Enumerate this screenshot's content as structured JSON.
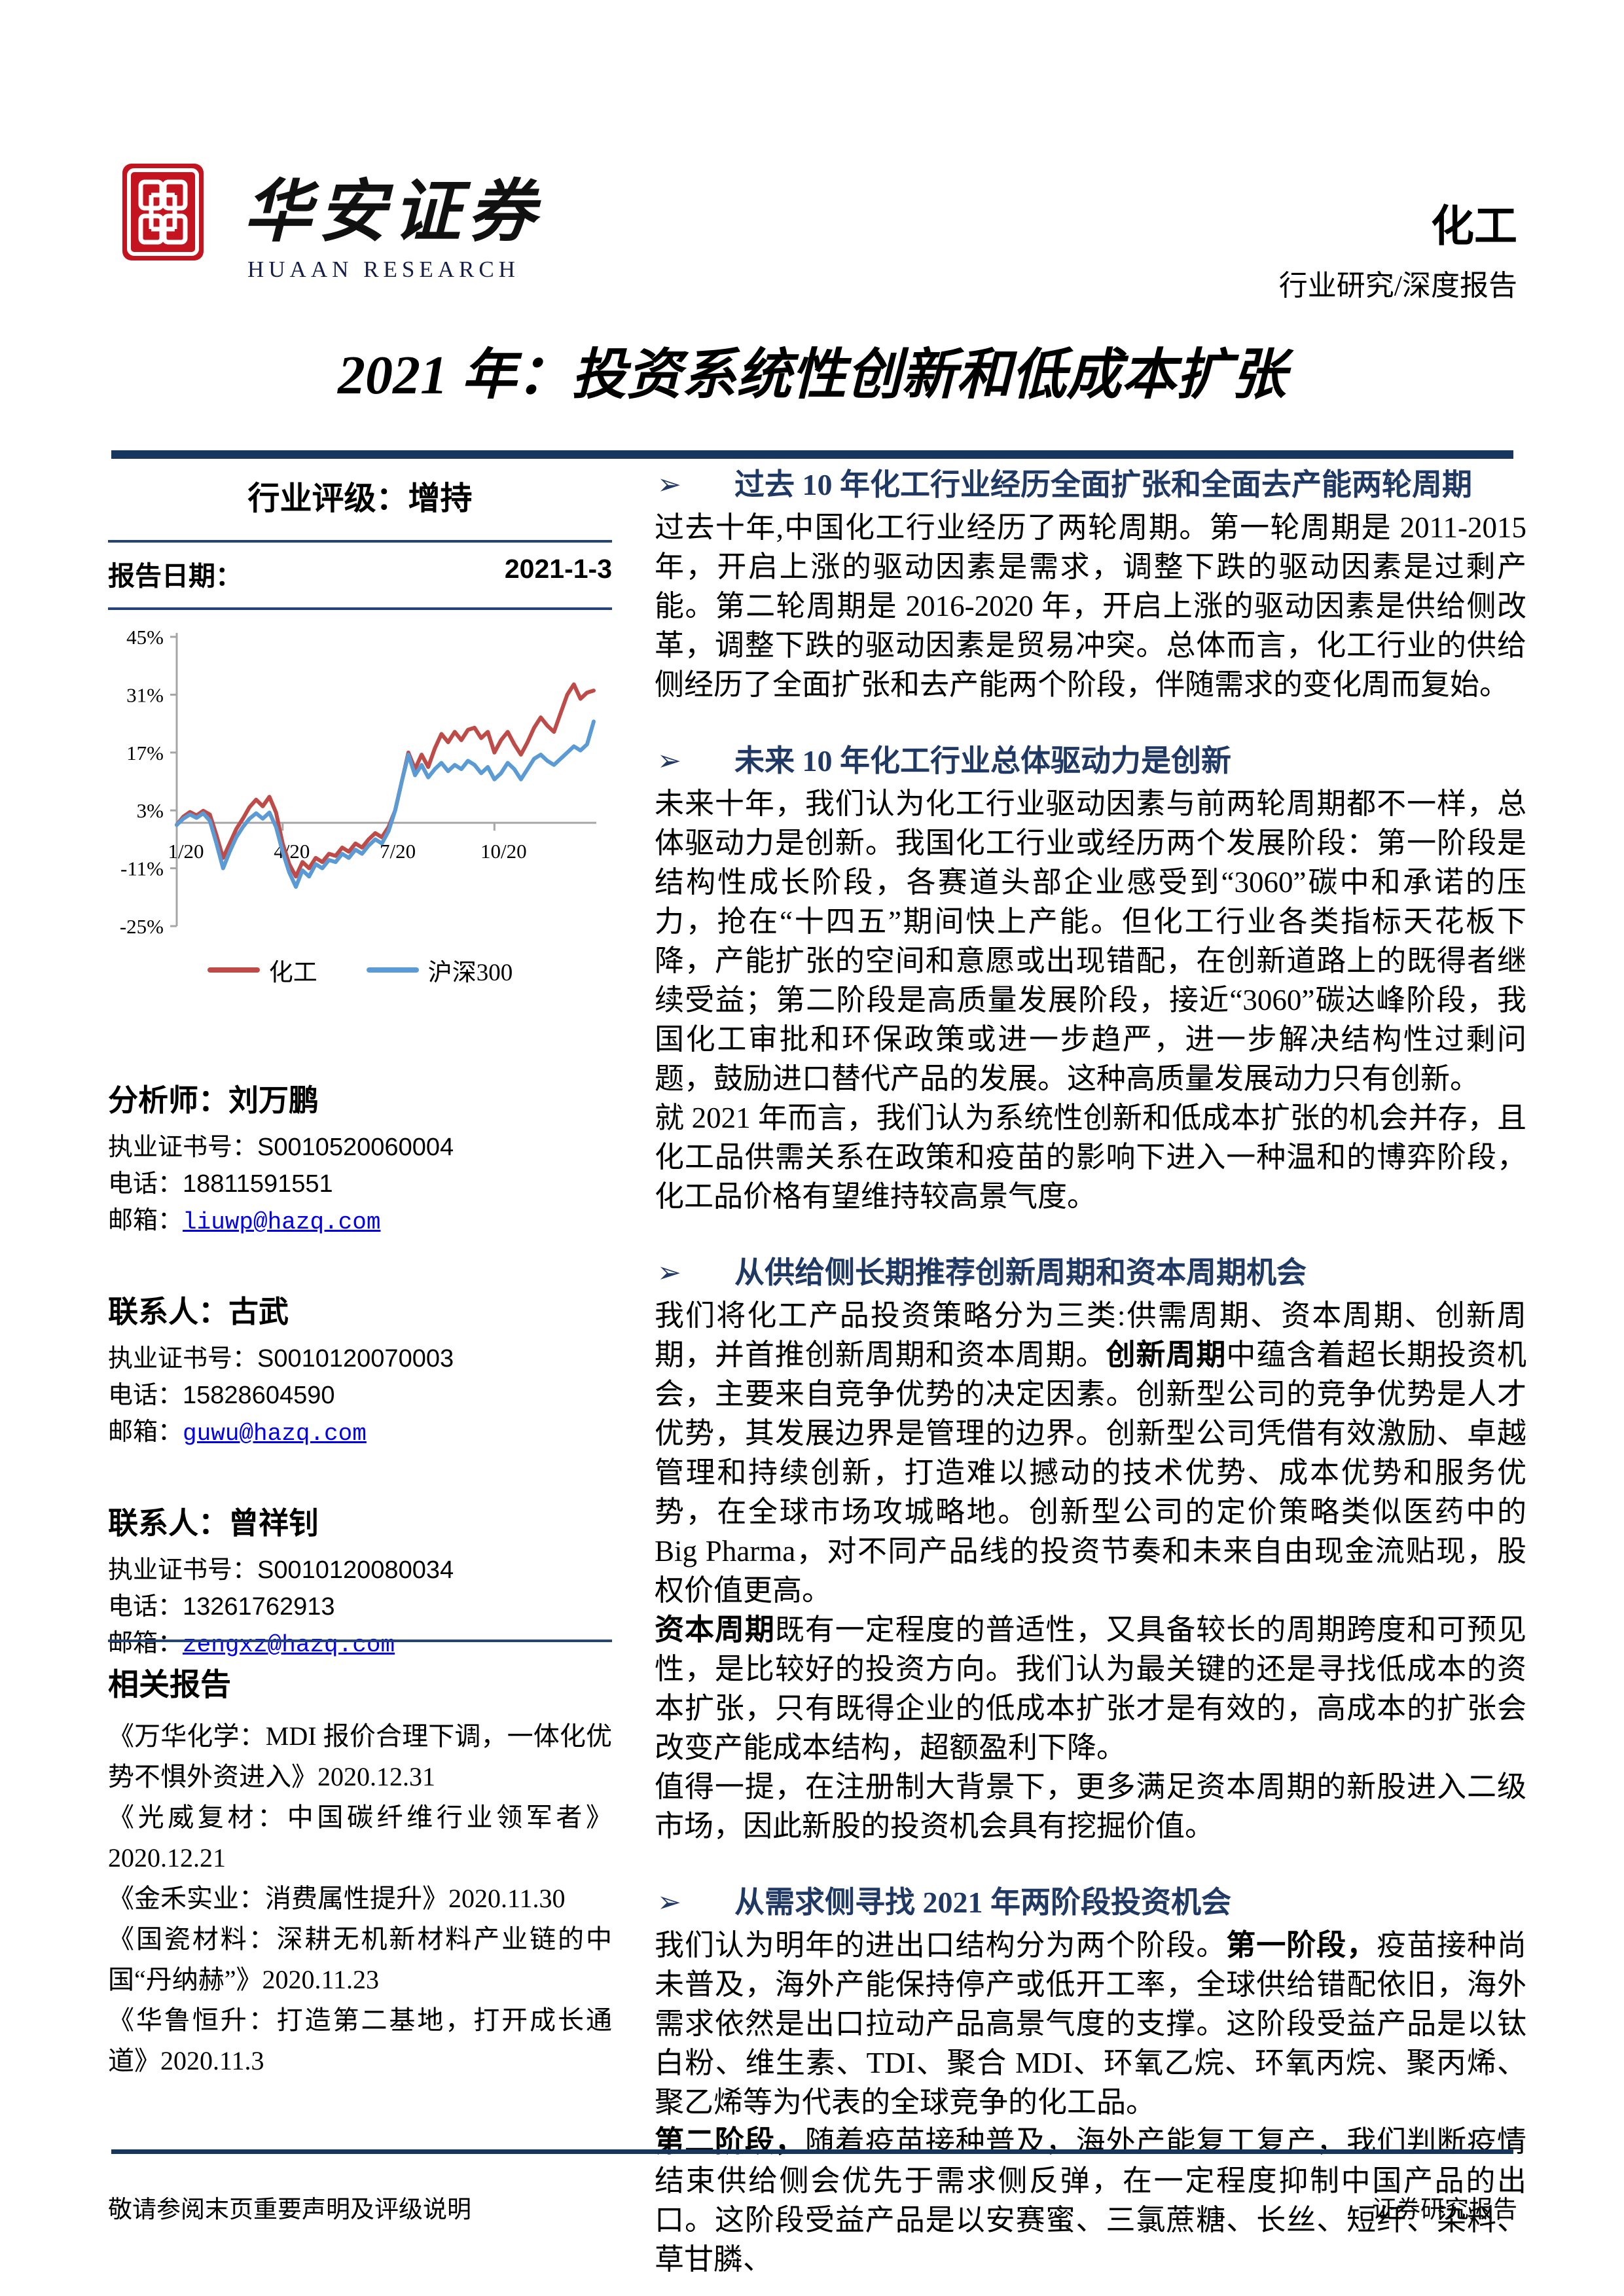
{
  "header": {
    "brand_cn": "华安证券",
    "brand_en": "HUAAN RESEARCH",
    "industry": "化工",
    "report_type": "行业研究/深度报告",
    "title": "2021 年：投资系统性创新和低成本扩张"
  },
  "left": {
    "rating": "行业评级：增持",
    "date_label": "报告日期：",
    "date_value": "2021-1-3",
    "people": [
      {
        "title": "分析师：刘万鹏",
        "rows": [
          {
            "label": "执业证书号：",
            "value": "S0010520060004"
          },
          {
            "label": "电话：",
            "value": "18811591551"
          },
          {
            "label": "邮箱：",
            "value": "liuwp@hazq.com"
          }
        ]
      },
      {
        "title": "联系人：古武",
        "rows": [
          {
            "label": "执业证书号：",
            "value": "S0010120070003"
          },
          {
            "label": "电话：",
            "value": "15828604590"
          },
          {
            "label": "邮箱：",
            "value": "guwu@hazq.com"
          }
        ]
      },
      {
        "title": "联系人：曾祥钊",
        "rows": [
          {
            "label": "执业证书号：",
            "value": "S0010120080034"
          },
          {
            "label": "电话：",
            "value": "13261762913"
          },
          {
            "label": "邮箱：",
            "value": "zengxz@hazq.com"
          }
        ]
      }
    ],
    "related_heading": "相关报告",
    "related": [
      "《万华化学：MDI 报价合理下调，一体化优势不惧外资进入》2020.12.31",
      "《光威复材：中国碳纤维行业领军者》2020.12.21",
      "《金禾实业：消费属性提升》2020.11.30",
      "《国瓷材料：深耕无机新材料产业链的中国“丹纳赫”》2020.11.23",
      "《华鲁恒升：打造第二基地，打开成长通道》2020.11.3"
    ]
  },
  "right": {
    "bullet_glyph": "➢",
    "sections": [
      {
        "heading": "过去 10 年化工行业经历全面扩张和全面去产能两轮周期",
        "paras": [
          {
            "segs": [
              {
                "t": "过去十年,中国化工行业经历了两轮周期。第一轮周期是 2011-2015 年，开启上涨的驱动因素是需求，调整下跌的驱动因素是过剩产能。第二轮周期是 2016-2020 年，开启上涨的驱动因素是供给侧改革，调整下跌的驱动因素是贸易冲突。总体而言，化工行业的供给侧经历了全面扩张和去产能两个阶段，伴随需求的变化周而复始。",
                "b": false
              }
            ]
          }
        ]
      },
      {
        "heading": "未来 10 年化工行业总体驱动力是创新",
        "paras": [
          {
            "segs": [
              {
                "t": "未来十年，我们认为化工行业驱动因素与前两轮周期都不一样，总体驱动力是创新。我国化工行业或经历两个发展阶段：第一阶段是结构性成长阶段，各赛道头部企业感受到“3060”碳中和承诺的压力，抢在“十四五”期间快上产能。但化工行业各类指标天花板下降，产能扩张的空间和意愿或出现错配，在创新道路上的既得者继续受益；第二阶段是高质量发展阶段，接近“3060”碳达峰阶段，我国化工审批和环保政策或进一步趋严，进一步解决结构性过剩问题，鼓励进口替代产品的发展。这种高质量发展动力只有创新。",
                "b": false
              }
            ]
          },
          {
            "segs": [
              {
                "t": "就 2021 年而言，我们认为系统性创新和低成本扩张的机会并存，且化工品供需关系在政策和疫苗的影响下进入一种温和的博弈阶段，化工品价格有望维持较高景气度。",
                "b": false
              }
            ]
          }
        ]
      },
      {
        "heading": "从供给侧长期推荐创新周期和资本周期机会",
        "paras": [
          {
            "segs": [
              {
                "t": "我们将化工产品投资策略分为三类:供需周期、资本周期、创新周期，并首推创新周期和资本周期。",
                "b": false
              },
              {
                "t": "创新周期",
                "b": true
              },
              {
                "t": "中蕴含着超长期投资机会，主要来自竞争优势的决定因素。创新型公司的竞争优势是人才优势，其发展边界是管理的边界。创新型公司凭借有效激励、卓越管理和持续创新，打造难以撼动的技术优势、成本优势和服务优势，在全球市场攻城略地。创新型公司的定价策略类似医药中的 Big Pharma，对不同产品线的投资节奏和未来自由现金流贴现，股权价值更高。",
                "b": false
              }
            ]
          },
          {
            "segs": [
              {
                "t": "资本周期",
                "b": true
              },
              {
                "t": "既有一定程度的普适性，又具备较长的周期跨度和可预见性，是比较好的投资方向。我们认为最关键的还是寻找低成本的资本扩张，只有既得企业的低成本扩张才是有效的，高成本的扩张会改变产能成本结构，超额盈利下降。",
                "b": false
              }
            ]
          },
          {
            "segs": [
              {
                "t": "值得一提，在注册制大背景下，更多满足资本周期的新股进入二级市场，因此新股的投资机会具有挖掘价值。",
                "b": false
              }
            ]
          }
        ]
      },
      {
        "heading": "从需求侧寻找 2021 年两阶段投资机会",
        "paras": [
          {
            "segs": [
              {
                "t": "我们认为明年的进出口结构分为两个阶段。",
                "b": false
              },
              {
                "t": "第一阶段，",
                "b": true
              },
              {
                "t": "疫苗接种尚未普及，海外产能保持停产或低开工率，全球供给错配依旧，海外需求依然是出口拉动产品高景气度的支撑。这阶段受益产品是以钛白粉、维生素、TDI、聚合 MDI、环氧乙烷、环氧丙烷、聚丙烯、聚乙烯等为代表的全球竞争的化工品。",
                "b": false
              }
            ]
          },
          {
            "segs": [
              {
                "t": "第二阶段，",
                "b": true
              },
              {
                "t": "随着疫苗接种普及，海外产能复工复产，我们判断疫情结束供给侧会优先于需求侧反弹，在一定程度抑制中国产品的出口。这阶段受益产品是以安赛蜜、三氯蔗糖、长丝、短纤、染料、草甘膦、",
                "b": false
              }
            ]
          }
        ]
      }
    ]
  },
  "footer": {
    "left": "敬请参阅末页重要声明及评级说明",
    "right": "证券研究报告"
  },
  "chart_data": {
    "type": "line",
    "title": "",
    "xlabel": "",
    "ylabel": "",
    "ylim": [
      -25,
      45
    ],
    "grid": false,
    "legend_position": "bottom",
    "yticks": [
      {
        "label": "45%",
        "v": 45
      },
      {
        "label": "31%",
        "v": 31
      },
      {
        "label": "17%",
        "v": 17
      },
      {
        "label": "3%",
        "v": 3
      },
      {
        "label": "-11%",
        "v": -11
      },
      {
        "label": "-25%",
        "v": -25
      }
    ],
    "xticks": [
      {
        "label": "1/20",
        "i": 0
      },
      {
        "label": "4/20",
        "i": 16
      },
      {
        "label": "7/20",
        "i": 32
      },
      {
        "label": "10/20",
        "i": 48
      }
    ],
    "series": [
      {
        "name": "化工",
        "color": "#BE4B48",
        "values": [
          -0.5,
          1.5,
          2.6,
          1.8,
          2.9,
          2,
          -3,
          -8.5,
          -5,
          -1.5,
          1,
          3.8,
          5.6,
          4,
          6.3,
          2.5,
          -5,
          -10,
          -13,
          -9.5,
          -11,
          -8.5,
          -9.5,
          -7.5,
          -8,
          -6,
          -7,
          -5,
          -6,
          -4,
          -2.5,
          -3.5,
          -1,
          3,
          10,
          17,
          13,
          16.5,
          13.5,
          18,
          21.5,
          19.5,
          22,
          20,
          22.5,
          23,
          20.5,
          22,
          17,
          20,
          22,
          19,
          16.5,
          19.5,
          23,
          25.5,
          23.5,
          22,
          26.5,
          31,
          33.5,
          30,
          31.5,
          32
        ]
      },
      {
        "name": "沪深300",
        "color": "#5B9BD5",
        "values": [
          -0.5,
          1,
          2,
          1.2,
          2.3,
          0.5,
          -5,
          -11,
          -7,
          -3.5,
          -1,
          1,
          2.3,
          1,
          2.5,
          -1,
          -7,
          -12,
          -15.5,
          -11.5,
          -13,
          -10,
          -11,
          -9,
          -9.5,
          -7.5,
          -8.5,
          -6.5,
          -7.5,
          -5.5,
          -4,
          -5,
          -2,
          3,
          10,
          16.5,
          11.5,
          14,
          11,
          13,
          14.5,
          12.5,
          14,
          13,
          15,
          14,
          12,
          13.5,
          10.5,
          12,
          14.5,
          13,
          10.5,
          13,
          15.5,
          16.5,
          15,
          14,
          15.5,
          17,
          18.5,
          17.5,
          19,
          24.5
        ]
      }
    ]
  }
}
